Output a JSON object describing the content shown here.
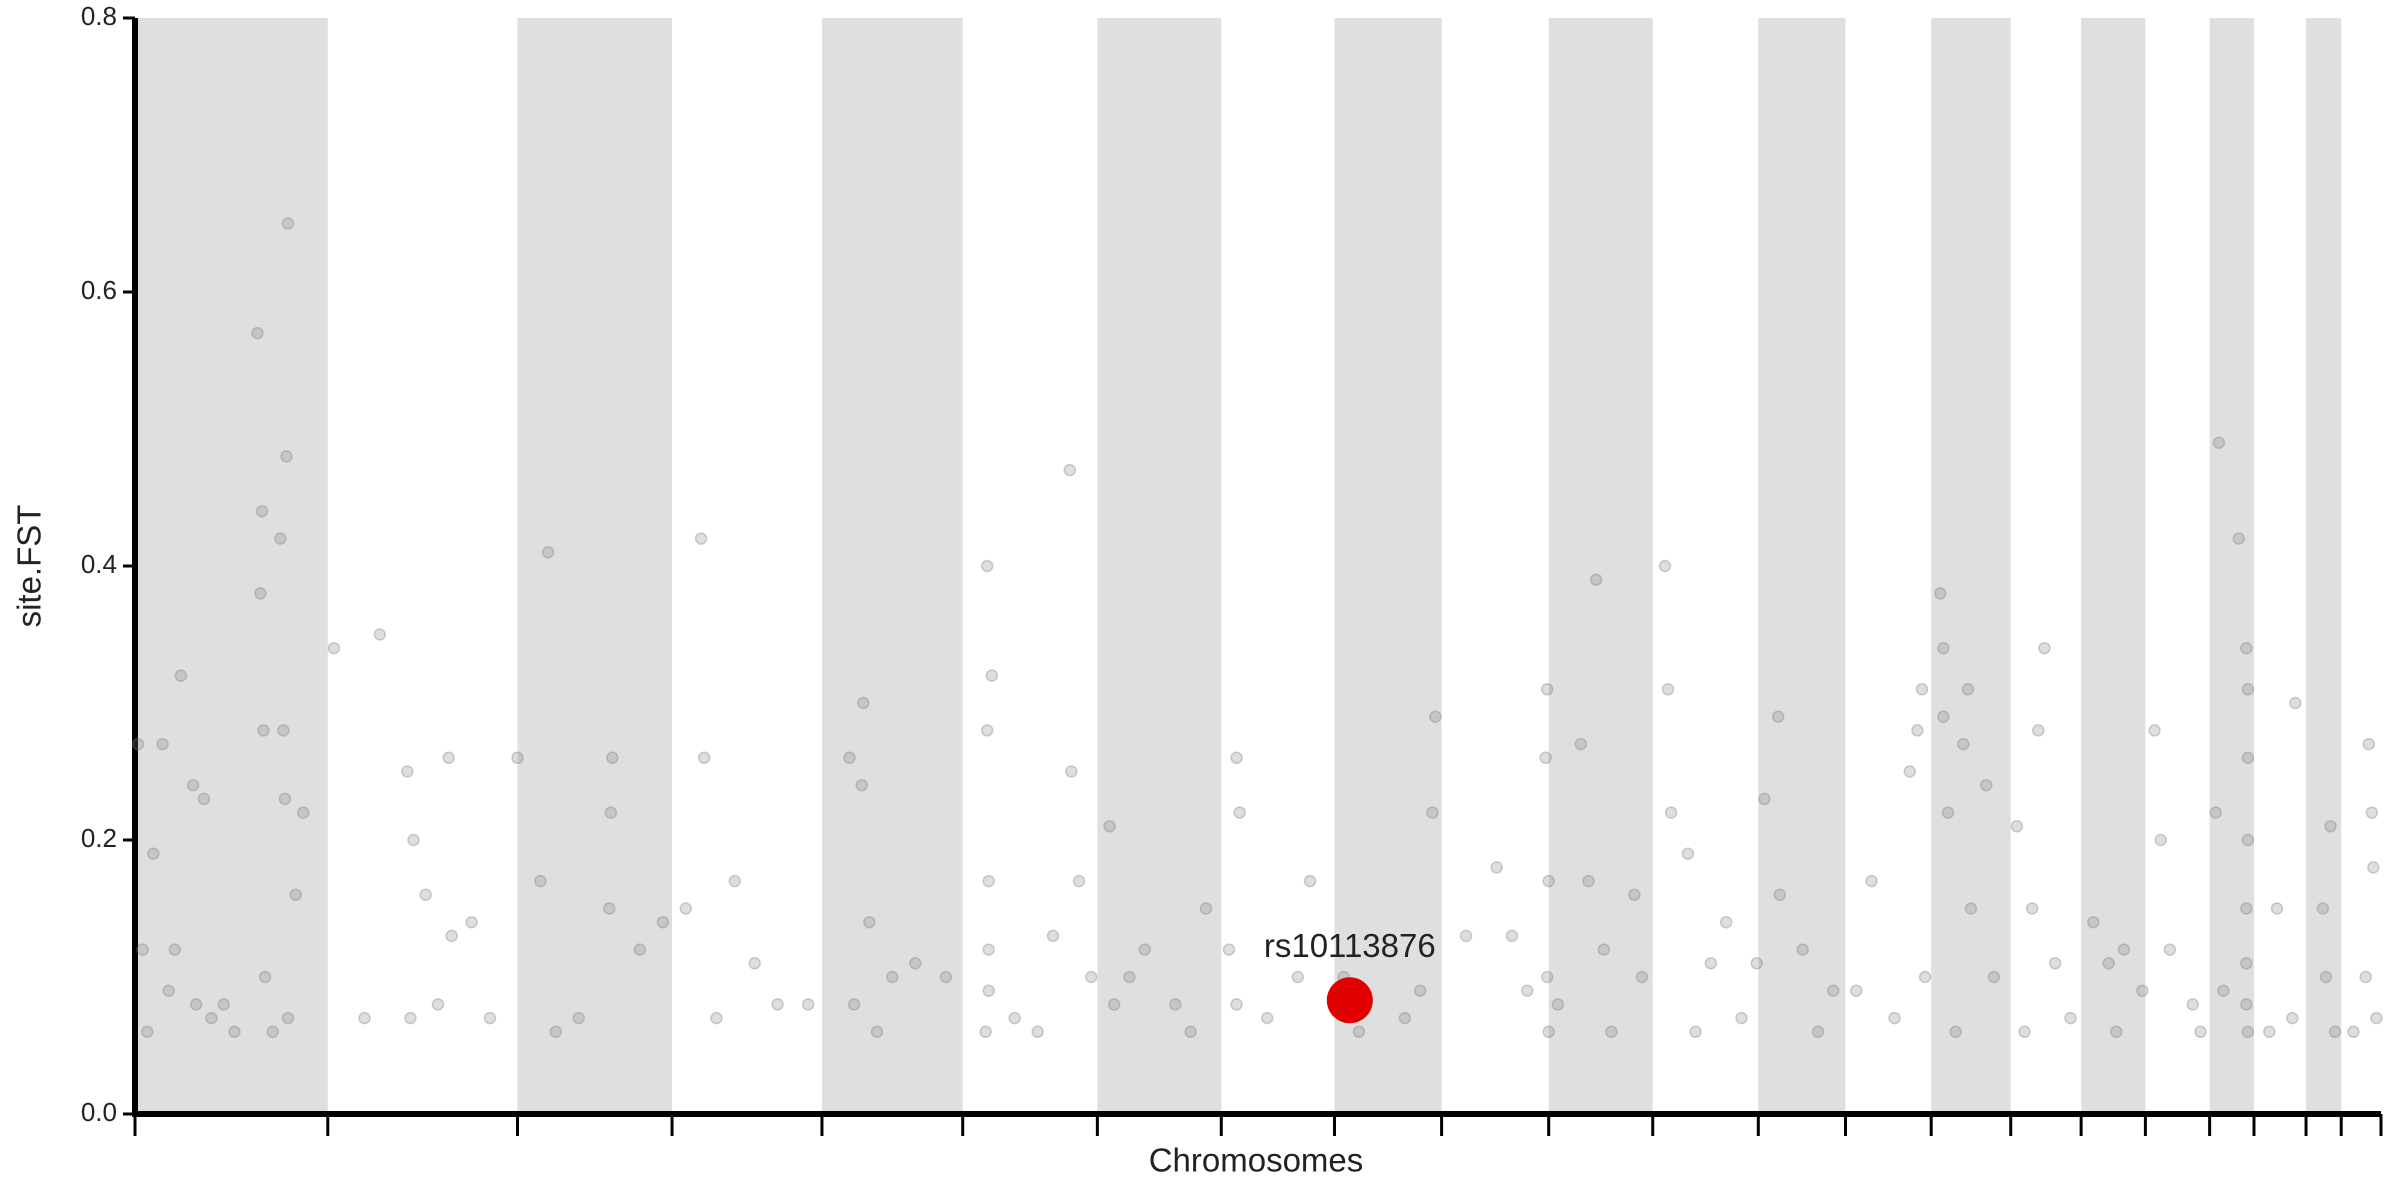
{
  "chart_data": {
    "type": "scatter",
    "ylabel": "site.FST",
    "xlabel": "Chromosomes",
    "ylim": [
      0,
      0.8
    ],
    "yticks": [
      {
        "value": 0,
        "label": "0.0"
      },
      0.2,
      0.4,
      0.6,
      0.8
    ],
    "xlim": [
      0,
      1468
    ],
    "xticks": [
      0,
      126,
      250,
      351,
      449,
      541,
      629,
      710,
      784,
      854,
      924,
      992,
      1061,
      1118,
      1174,
      1226,
      1272,
      1314,
      1356,
      1385,
      1419,
      1442,
      1468
    ],
    "band_color": "#dfdfdf",
    "color": "#7a7a7a",
    "x": [
      2,
      5,
      8,
      12,
      18,
      22,
      30,
      38,
      45,
      40,
      50,
      58,
      80,
      83,
      82,
      84,
      95,
      99,
      100,
      97,
      98,
      100,
      85,
      90,
      110,
      105,
      26,
      65,
      130,
      160,
      178,
      180,
      182,
      190,
      205,
      207,
      220,
      232,
      198,
      150,
      270,
      250,
      265,
      312,
      311,
      310,
      290,
      330,
      345,
      275,
      370,
      372,
      380,
      392,
      405,
      420,
      440,
      360,
      467,
      476,
      475,
      470,
      480,
      495,
      510,
      530,
      485,
      557,
      560,
      557,
      558,
      558,
      558,
      556,
      575,
      600,
      611,
      612,
      617,
      625,
      590,
      637,
      640,
      660,
      680,
      700,
      690,
      650,
      720,
      722,
      715,
      720,
      740,
      768,
      760,
      790,
      800,
      840,
      850,
      848,
      830,
      870,
      890,
      900,
      923,
      922,
      924,
      923,
      924,
      910,
      955,
      945,
      950,
      960,
      980,
      985,
      965,
      930,
      1000,
      1002,
      1004,
      1015,
      1030,
      1050,
      1040,
      1020,
      1065,
      1074,
      1060,
      1075,
      1090,
      1110,
      1100,
      1135,
      1160,
      1168,
      1165,
      1170,
      1150,
      1125,
      1180,
      1182,
      1182,
      1185,
      1198,
      1195,
      1200,
      1210,
      1215,
      1190,
      1230,
      1248,
      1244,
      1240,
      1255,
      1265,
      1235,
      1280,
      1290,
      1300,
      1312,
      1295,
      1320,
      1324,
      1330,
      1345,
      1350,
      1362,
      1375,
      1380,
      1381,
      1381,
      1381,
      1380,
      1380,
      1380,
      1381,
      1360,
      1365,
      1412,
      1400,
      1410,
      1395,
      1435,
      1430,
      1432,
      1438,
      1460,
      1462,
      1463,
      1458,
      1465,
      1450
    ],
    "values": [
      0.27,
      0.12,
      0.06,
      0.19,
      0.27,
      0.09,
      0.32,
      0.24,
      0.23,
      0.08,
      0.07,
      0.08,
      0.57,
      0.44,
      0.38,
      0.28,
      0.42,
      0.48,
      0.65,
      0.28,
      0.23,
      0.07,
      0.1,
      0.06,
      0.22,
      0.16,
      0.12,
      0.06,
      0.34,
      0.35,
      0.25,
      0.07,
      0.2,
      0.16,
      0.26,
      0.13,
      0.14,
      0.07,
      0.08,
      0.07,
      0.41,
      0.26,
      0.17,
      0.26,
      0.22,
      0.15,
      0.07,
      0.12,
      0.14,
      0.06,
      0.42,
      0.26,
      0.07,
      0.17,
      0.11,
      0.08,
      0.08,
      0.15,
      0.26,
      0.3,
      0.24,
      0.08,
      0.14,
      0.1,
      0.11,
      0.1,
      0.06,
      0.4,
      0.32,
      0.28,
      0.17,
      0.12,
      0.09,
      0.06,
      0.07,
      0.13,
      0.47,
      0.25,
      0.17,
      0.1,
      0.06,
      0.21,
      0.08,
      0.12,
      0.08,
      0.15,
      0.06,
      0.1,
      0.26,
      0.22,
      0.12,
      0.08,
      0.07,
      0.17,
      0.1,
      0.1,
      0.06,
      0.09,
      0.29,
      0.22,
      0.07,
      0.13,
      0.18,
      0.13,
      0.31,
      0.26,
      0.17,
      0.1,
      0.06,
      0.09,
      0.39,
      0.27,
      0.17,
      0.12,
      0.16,
      0.1,
      0.06,
      0.08,
      0.4,
      0.31,
      0.22,
      0.19,
      0.11,
      0.07,
      0.14,
      0.06,
      0.23,
      0.29,
      0.11,
      0.16,
      0.12,
      0.09,
      0.06,
      0.17,
      0.25,
      0.31,
      0.28,
      0.1,
      0.07,
      0.09,
      0.38,
      0.34,
      0.29,
      0.22,
      0.31,
      0.27,
      0.15,
      0.24,
      0.1,
      0.06,
      0.21,
      0.34,
      0.28,
      0.15,
      0.11,
      0.07,
      0.06,
      0.14,
      0.11,
      0.12,
      0.09,
      0.06,
      0.28,
      0.2,
      0.12,
      0.08,
      0.06,
      0.49,
      0.42,
      0.34,
      0.31,
      0.26,
      0.2,
      0.15,
      0.11,
      0.08,
      0.06,
      0.22,
      0.09,
      0.3,
      0.15,
      0.07,
      0.06,
      0.21,
      0.15,
      0.1,
      0.06,
      0.27,
      0.22,
      0.18,
      0.1,
      0.07,
      0.06
    ],
    "highlight": {
      "label": "rs10113876",
      "x": 794,
      "value": 0.083,
      "color": "#e00000"
    }
  }
}
